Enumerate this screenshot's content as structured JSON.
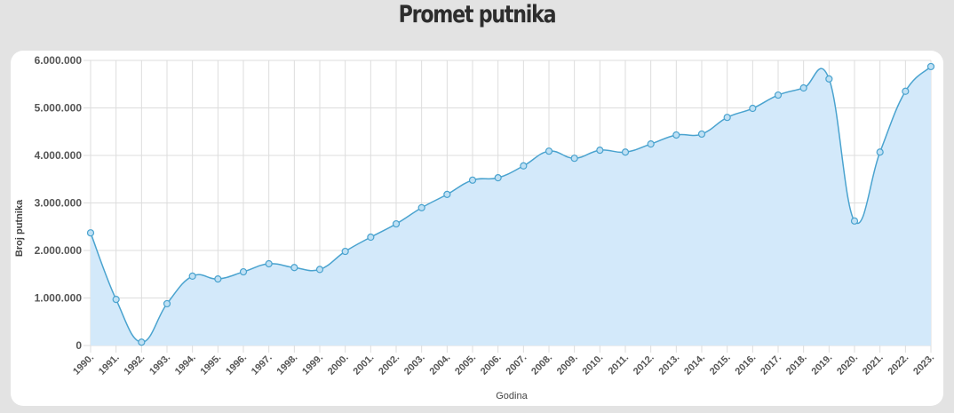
{
  "page": {
    "title": "Promet putnika"
  },
  "colors": {
    "background": "#e3e3e3",
    "card": "#ffffff",
    "line": "#4aa3cf",
    "fill": "#d3e9fa",
    "point": "#4aa3cf",
    "grid": "#dddddd"
  },
  "chart_data": {
    "type": "area",
    "title": "Promet putnika",
    "xlabel": "Godina",
    "ylabel": "Broj putnika",
    "ylim": [
      0,
      6000000
    ],
    "yticks": [
      0,
      1000000,
      2000000,
      3000000,
      4000000,
      5000000,
      6000000
    ],
    "ytick_labels": [
      "0",
      "1.000.000",
      "2.000.000",
      "3.000.000",
      "4.000.000",
      "5.000.000",
      "6.000.000"
    ],
    "grid": true,
    "legend": null,
    "categories": [
      "1990.",
      "1991.",
      "1992.",
      "1993.",
      "1994.",
      "1995.",
      "1996.",
      "1997.",
      "1998.",
      "1999.",
      "2000.",
      "2001.",
      "2002.",
      "2003.",
      "2004.",
      "2005.",
      "2006.",
      "2007.",
      "2008.",
      "2009.",
      "2010.",
      "2011.",
      "2012.",
      "2013.",
      "2014.",
      "2015.",
      "2016.",
      "2017.",
      "2018.",
      "2019.",
      "2020.",
      "2021.",
      "2022.",
      "2023."
    ],
    "series": [
      {
        "name": "Broj putnika",
        "values": [
          2370000,
          970000,
          70000,
          880000,
          1460000,
          1400000,
          1550000,
          1720000,
          1640000,
          1600000,
          1980000,
          2280000,
          2560000,
          2900000,
          3180000,
          3480000,
          3530000,
          3780000,
          4090000,
          3940000,
          4110000,
          4070000,
          4240000,
          4430000,
          4450000,
          4800000,
          4990000,
          5270000,
          5420000,
          5610000,
          2620000,
          4070000,
          5350000,
          5870000
        ]
      }
    ]
  }
}
